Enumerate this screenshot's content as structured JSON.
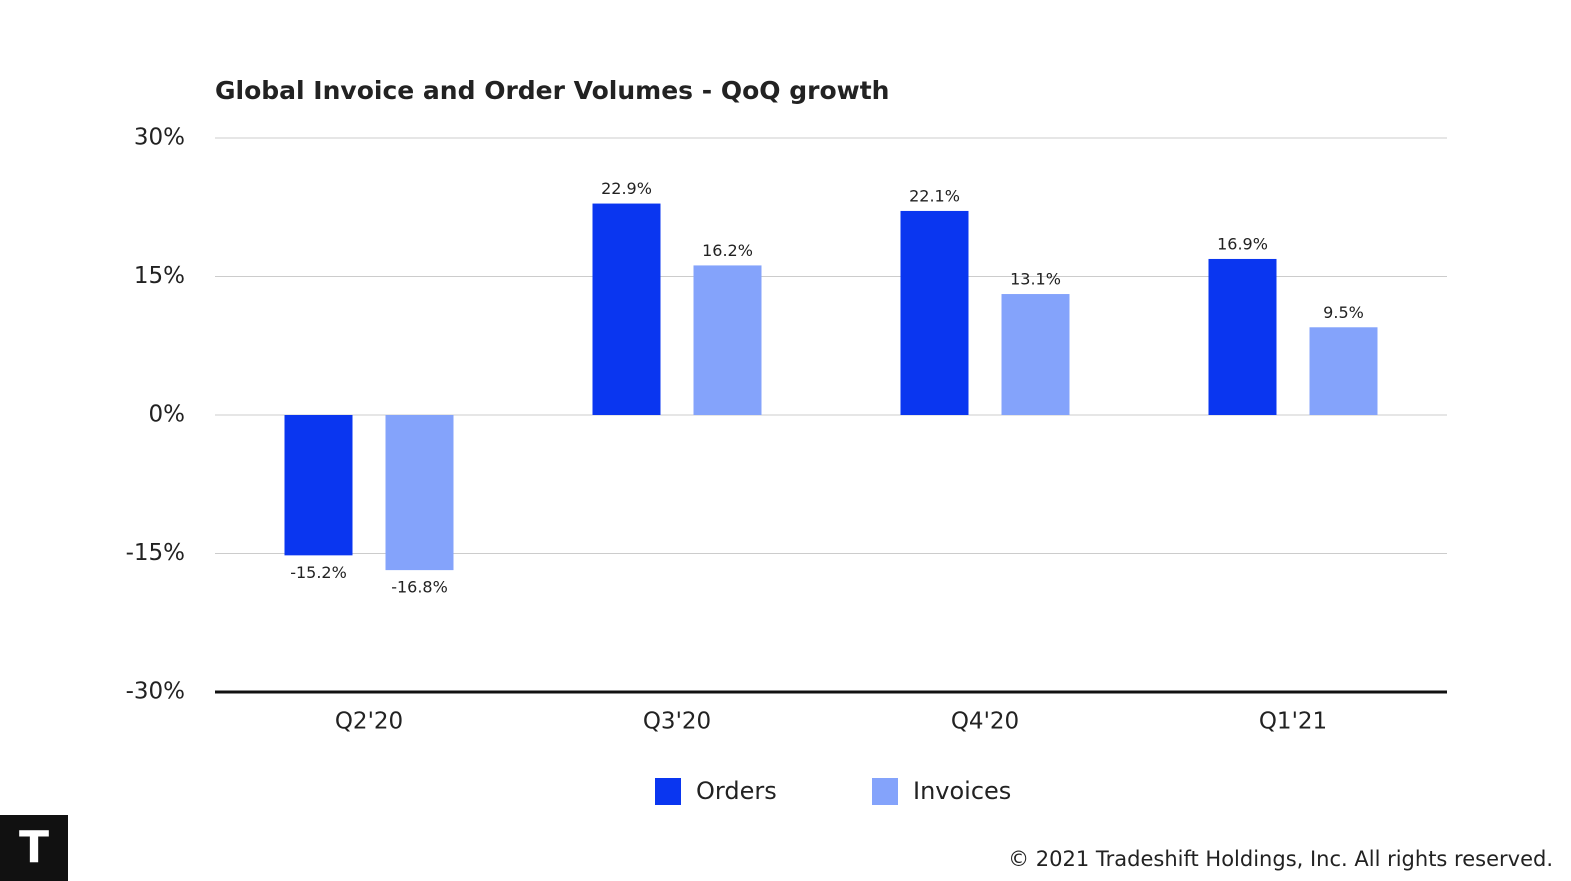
{
  "chart_data": {
    "type": "bar",
    "title": "Global Invoice and Order Volumes - QoQ growth",
    "categories": [
      "Q2'20",
      "Q3'20",
      "Q4'20",
      "Q1'21"
    ],
    "series": [
      {
        "name": "Orders",
        "color": "#0a36f0",
        "values": [
          -15.2,
          22.9,
          22.1,
          16.9
        ],
        "value_labels": [
          "-15.2%",
          "22.9%",
          "22.1%",
          "16.9%"
        ]
      },
      {
        "name": "Invoices",
        "color": "#84a3fb",
        "values": [
          -16.8,
          16.2,
          13.1,
          9.5
        ],
        "value_labels": [
          "-16.8%",
          "16.2%",
          "13.1%",
          "9.5%"
        ]
      }
    ],
    "ylim": [
      -30,
      30
    ],
    "yticks": [
      {
        "value": -30,
        "label": "-30%"
      },
      {
        "value": -15,
        "label": "-15%"
      },
      {
        "value": 0,
        "label": "0%"
      },
      {
        "value": 15,
        "label": "15%"
      },
      {
        "value": 30,
        "label": "30%"
      }
    ],
    "grid": true,
    "legend": "bottom"
  },
  "logo": "T",
  "footer": "© 2021 Tradeshift Holdings, Inc. All rights reserved."
}
